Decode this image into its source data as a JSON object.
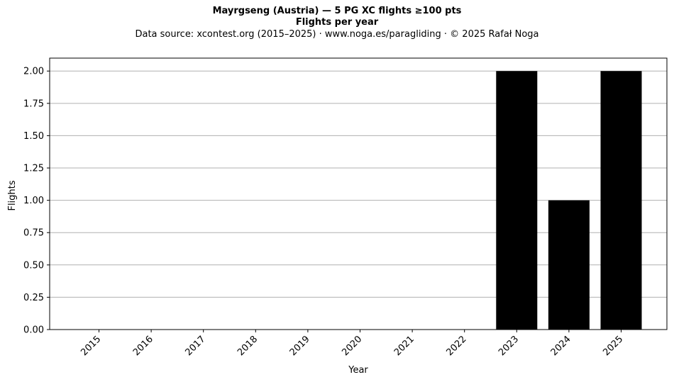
{
  "chart_data": {
    "type": "bar",
    "title": "Mayrgseng (Austria)  —  5 PG XC flights ≥100 pts",
    "title2": "Flights per year",
    "subtitle": "Data source: xcontest.org (2015–2025)  ·  www.noga.es/paragliding  ·  © 2025 Rafał Noga",
    "xlabel": "Year",
    "ylabel": "Flights",
    "categories": [
      "2015",
      "2016",
      "2017",
      "2018",
      "2019",
      "2020",
      "2021",
      "2022",
      "2023",
      "2024",
      "2025"
    ],
    "values": [
      0,
      0,
      0,
      0,
      0,
      0,
      0,
      0,
      2,
      1,
      2
    ],
    "ylim": [
      0,
      2.1
    ],
    "yticks": [
      "0.00",
      "0.25",
      "0.50",
      "0.75",
      "1.00",
      "1.25",
      "1.50",
      "1.75",
      "2.00"
    ],
    "bar_color": "#000000",
    "grid": "y",
    "grid_color": "#b0b0b0"
  }
}
